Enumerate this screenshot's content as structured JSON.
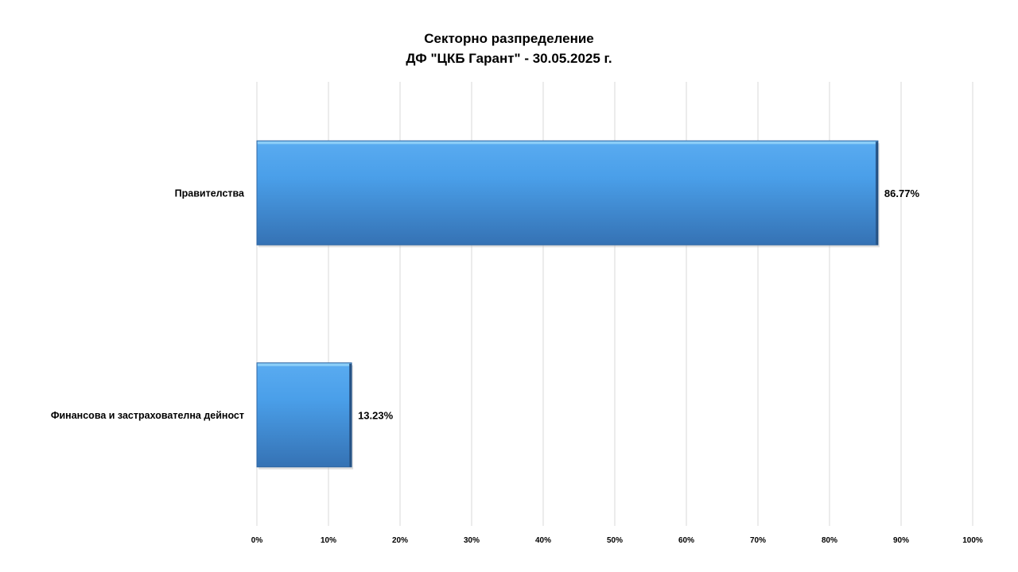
{
  "chart_data": {
    "type": "bar",
    "orientation": "horizontal",
    "title_line1": "Секторно разпределение",
    "title_line2": "ДФ \"ЦКБ Гарант\" - 30.05.2025 г.",
    "categories": [
      "Правителства",
      "Финансова и застрахователна дейност"
    ],
    "values": [
      86.77,
      13.23
    ],
    "data_labels": [
      "86.77%",
      "13.23%"
    ],
    "xlim": [
      0,
      100
    ],
    "x_ticks": [
      "0%",
      "10%",
      "20%",
      "30%",
      "40%",
      "50%",
      "60%",
      "70%",
      "80%",
      "90%",
      "100%"
    ],
    "grid": true,
    "legend": false,
    "bar_color": "#3f8fd8"
  }
}
